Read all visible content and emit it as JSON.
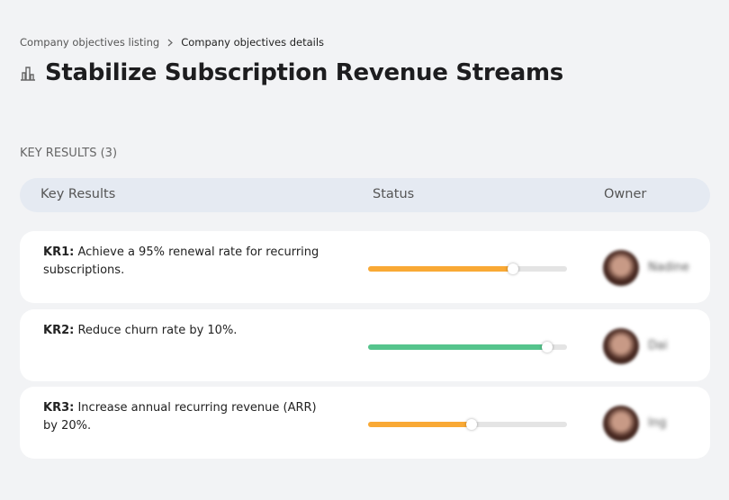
{
  "breadcrumb": {
    "items": [
      "Company objectives listing",
      "Company objectives details"
    ]
  },
  "title": "Stabilize Subscription Revenue Streams",
  "section": {
    "label": "KEY RESULTS (3)"
  },
  "table": {
    "columns": [
      "Key Results",
      "Status",
      "Owner"
    ],
    "rows": [
      {
        "id": "KR1:",
        "text": "Achieve a 95% renewal rate for recurring subscriptions.",
        "progress": 73,
        "color": "#f9a935",
        "owner": "Nadine"
      },
      {
        "id": "KR2:",
        "text": "Reduce churn rate by 10%.",
        "progress": 90,
        "color": "#55c48c",
        "owner": "Dai"
      },
      {
        "id": "KR3:",
        "text": "Increase annual recurring revenue (ARR) by 20%.",
        "progress": 52,
        "color": "#f9a935",
        "owner": "Ing"
      }
    ]
  }
}
